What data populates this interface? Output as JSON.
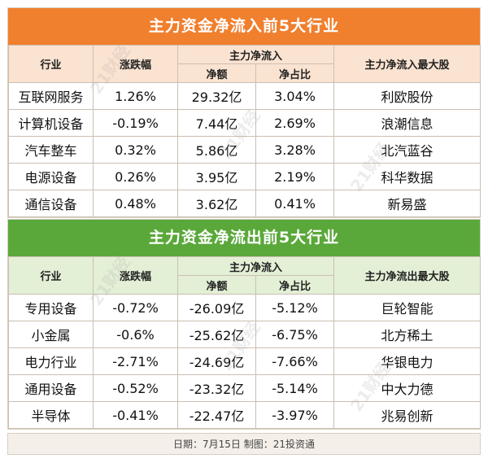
{
  "inflow": {
    "title": "主力资金净流入前5大行业",
    "headers": {
      "industry": "行业",
      "change": "涨跌幅",
      "net_group": "主力净流入",
      "net_amount": "净额",
      "net_ratio": "净占比",
      "top_stock": "主力净流入最大股"
    },
    "rows": [
      {
        "industry": "互联网服务",
        "change": "1.26%",
        "amount": "29.32亿",
        "ratio": "3.04%",
        "stock": "利欧股份"
      },
      {
        "industry": "计算机设备",
        "change": "-0.19%",
        "amount": "7.44亿",
        "ratio": "2.69%",
        "stock": "浪潮信息"
      },
      {
        "industry": "汽车整车",
        "change": "0.32%",
        "amount": "5.86亿",
        "ratio": "3.28%",
        "stock": "北汽蓝谷"
      },
      {
        "industry": "电源设备",
        "change": "0.26%",
        "amount": "3.95亿",
        "ratio": "2.19%",
        "stock": "科华数据"
      },
      {
        "industry": "通信设备",
        "change": "0.48%",
        "amount": "3.62亿",
        "ratio": "0.41%",
        "stock": "新易盛"
      }
    ]
  },
  "outflow": {
    "title": "主力资金净流出前5大行业",
    "headers": {
      "industry": "行业",
      "change": "涨跌幅",
      "net_group": "主力净流入",
      "net_amount": "净额",
      "net_ratio": "净占比",
      "top_stock": "主力净流出最大股"
    },
    "rows": [
      {
        "industry": "专用设备",
        "change": "-0.72%",
        "amount": "-26.09亿",
        "ratio": "-5.12%",
        "stock": "巨轮智能"
      },
      {
        "industry": "小金属",
        "change": "-0.6%",
        "amount": "-25.62亿",
        "ratio": "-6.75%",
        "stock": "北方稀土"
      },
      {
        "industry": "电力行业",
        "change": "-2.71%",
        "amount": "-24.69亿",
        "ratio": "-7.66%",
        "stock": "华银电力"
      },
      {
        "industry": "通用设备",
        "change": "-0.52%",
        "amount": "-23.32亿",
        "ratio": "-5.14%",
        "stock": "中大力德"
      },
      {
        "industry": "半导体",
        "change": "-0.41%",
        "amount": "-22.47亿",
        "ratio": "-3.97%",
        "stock": "兆易创新"
      }
    ]
  },
  "footer": "日期：7月15日 制图：21投资通",
  "watermark": "21财经",
  "colors": {
    "inflow_banner": "#f07f2e",
    "outflow_banner": "#5aa83a"
  }
}
